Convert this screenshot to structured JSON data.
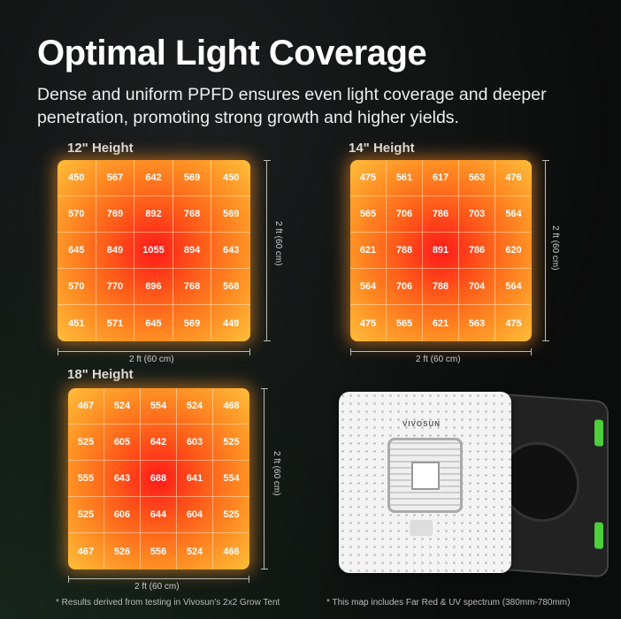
{
  "title": "Optimal Light Coverage",
  "subtitle": "Dense and uniform PPFD ensures even light coverage and deeper penetration, promoting strong growth and higher yields.",
  "dimension_label": "2 ft (60 cm)",
  "maps": [
    {
      "label": "12\" Height",
      "values": [
        450,
        567,
        642,
        569,
        450,
        570,
        769,
        892,
        768,
        569,
        645,
        849,
        1055,
        894,
        643,
        570,
        770,
        896,
        768,
        568,
        451,
        571,
        645,
        569,
        449
      ]
    },
    {
      "label": "14\" Height",
      "values": [
        475,
        561,
        617,
        563,
        476,
        565,
        706,
        786,
        703,
        564,
        621,
        788,
        891,
        786,
        620,
        564,
        706,
        788,
        704,
        564,
        475,
        565,
        621,
        563,
        475
      ]
    },
    {
      "label": "18\" Height",
      "values": [
        467,
        524,
        554,
        524,
        468,
        525,
        605,
        642,
        603,
        525,
        555,
        643,
        688,
        641,
        554,
        525,
        606,
        644,
        604,
        525,
        467,
        526,
        556,
        524,
        466
      ]
    }
  ],
  "product": {
    "brand": "VIVOSUN"
  },
  "notes": {
    "left": "* Results derived from testing in Vivosun's 2x2 Grow Tent",
    "right": "* This map includes Far Red & UV spectrum (380mm-780mm)"
  }
}
